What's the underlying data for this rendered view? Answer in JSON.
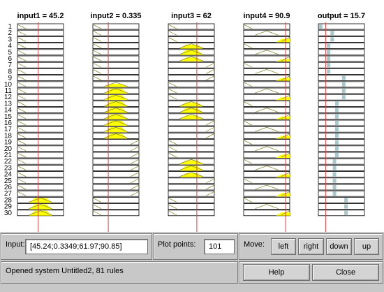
{
  "window": {
    "columns": [
      {
        "title": "input1 = 45.2",
        "kind": "input",
        "cursor": 45.24,
        "range": [
          0,
          100
        ]
      },
      {
        "title": "input2 = 0.335",
        "kind": "input",
        "cursor": 0.3349,
        "range": [
          0,
          1
        ]
      },
      {
        "title": "input3 = 62",
        "kind": "input",
        "cursor": 61.97,
        "range": [
          0,
          100
        ]
      },
      {
        "title": "input4 = 90.9",
        "kind": "input",
        "cursor": 90.85,
        "range": [
          0,
          100
        ]
      },
      {
        "title": "output = 15.7",
        "kind": "output",
        "cursor": 15.7,
        "range": [
          0,
          100
        ]
      }
    ],
    "rule_labels": [
      "1",
      "2",
      "3",
      "4",
      "5",
      "6",
      "7",
      "8",
      "9",
      "10",
      "11",
      "12",
      "13",
      "14",
      "15",
      "16",
      "17",
      "18",
      "19",
      "20",
      "21",
      "22",
      "23",
      "24",
      "25",
      "26",
      "27",
      "28",
      "29",
      "30"
    ]
  },
  "input_panel": {
    "label": "Input:",
    "value": "[45.24;0.3349;61.97;90.85]"
  },
  "plot_points": {
    "label": "Plot points:",
    "value": "101"
  },
  "move_panel": {
    "label": "Move:",
    "left": "left",
    "right": "right",
    "down": "down",
    "up": "up"
  },
  "status": {
    "text": "Opened system Untitled2, 81 rules"
  },
  "actions": {
    "help": "Help",
    "close": "Close"
  },
  "colors": {
    "fill": "#ffff00",
    "output_fill": "#a8c8cc",
    "cursor": "#e04040",
    "line": "#8a8a3a"
  }
}
